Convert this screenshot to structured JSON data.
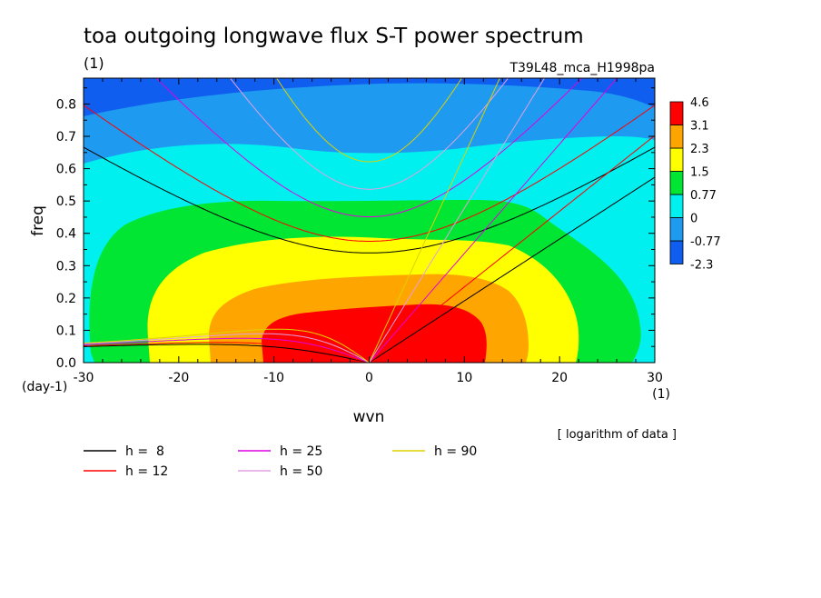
{
  "figure": {
    "title": "toa outgoing longwave flux S-T power spectrum",
    "subtitle": "(1)",
    "run_label": "T39L48_mca_H1998pa",
    "data_note": "[ logarithm of data ]"
  },
  "chart_data": {
    "type": "heatmap",
    "title": "toa outgoing longwave flux S-T power spectrum",
    "xlabel": "wvn",
    "ylabel": "freq",
    "x_unit": "(1)",
    "y_unit": "(day-1)",
    "xlim": [
      -30,
      30
    ],
    "ylim": [
      0,
      0.88
    ],
    "x_ticks": [
      -30,
      -20,
      -10,
      0,
      10,
      20,
      30
    ],
    "y_ticks": [
      0.0,
      0.1,
      0.2,
      0.3,
      0.4,
      0.5,
      0.6,
      0.7,
      0.8
    ],
    "y_tick_labels": [
      "0.0",
      "0.1",
      "0.2",
      "0.3",
      "0.4",
      "0.5",
      "0.6",
      "0.7",
      "0.8"
    ],
    "colorbar": {
      "levels": [
        "-2.3",
        "-0.77",
        "0",
        "0.77",
        "1.5",
        "2.3",
        "3.1",
        "4.6"
      ],
      "colors": [
        "#0f5ef0",
        "#1e9bf0",
        "#00f0f0",
        "#00e632",
        "#ffff00",
        "#ffa500",
        "#ff0000"
      ]
    },
    "legend": {
      "placement": "bottom",
      "entries": [
        {
          "label": "h =  8",
          "color": "#000000"
        },
        {
          "label": "h = 12",
          "color": "#ff0000"
        },
        {
          "label": "h = 25",
          "color": "#e000e0"
        },
        {
          "label": "h = 50",
          "color": "#e0a0e0"
        },
        {
          "label": "h = 90",
          "color": "#e0d000"
        }
      ]
    },
    "dispersion_curves": [
      {
        "h": 8,
        "color": "#000000"
      },
      {
        "h": 12,
        "color": "#ff0000"
      },
      {
        "h": 25,
        "color": "#e000e0"
      },
      {
        "h": 50,
        "color": "#e0a0e0"
      },
      {
        "h": 90,
        "color": "#e0d000"
      }
    ]
  }
}
